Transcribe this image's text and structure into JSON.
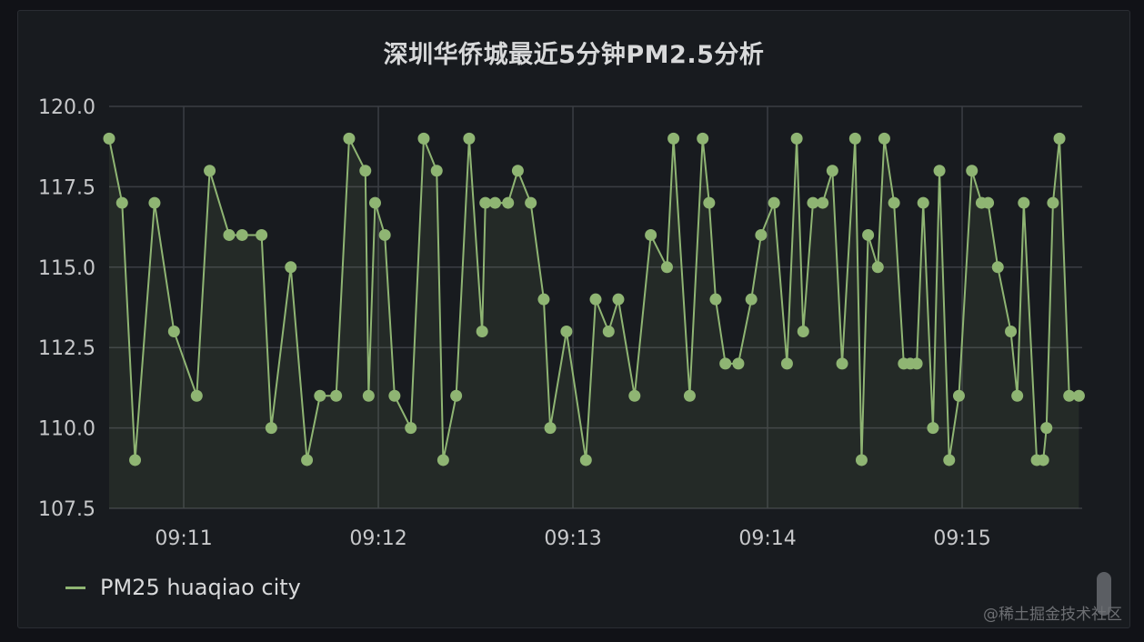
{
  "panel": {
    "title": "深圳华侨城最近5分钟PM2.5分析",
    "legend_label": "PM25 huaqiao city",
    "watermark": "@稀土掘金技术社区"
  },
  "colors": {
    "series": "#8fb573",
    "grid": "#3b3e44",
    "background": "#181b1f"
  },
  "chart_data": {
    "type": "area",
    "title": "深圳华侨城最近5分钟PM2.5分析",
    "xlabel": "",
    "ylabel": "",
    "ylim": [
      107.5,
      120.0
    ],
    "yticks": [
      120.0,
      117.5,
      115.0,
      112.5,
      110.0,
      107.5
    ],
    "ytick_labels": [
      "120.0",
      "117.5",
      "115.0",
      "112.5",
      "110.0",
      "107.5"
    ],
    "xlim": [
      "09:10:37",
      "09:15:37"
    ],
    "xticks": [
      "09:11",
      "09:12",
      "09:13",
      "09:14",
      "09:15"
    ],
    "legend": "bottom-left",
    "grid": true,
    "series": [
      {
        "name": "PM25 huaqiao city",
        "points": [
          [
            "09:10:37",
            119
          ],
          [
            "09:10:41",
            117
          ],
          [
            "09:10:45",
            109
          ],
          [
            "09:10:51",
            117
          ],
          [
            "09:10:57",
            113
          ],
          [
            "09:11:04",
            111
          ],
          [
            "09:11:08",
            118
          ],
          [
            "09:11:14",
            116
          ],
          [
            "09:11:18",
            116
          ],
          [
            "09:11:24",
            116
          ],
          [
            "09:11:27",
            110
          ],
          [
            "09:11:33",
            115
          ],
          [
            "09:11:38",
            109
          ],
          [
            "09:11:42",
            111
          ],
          [
            "09:11:47",
            111
          ],
          [
            "09:11:51",
            119
          ],
          [
            "09:11:56",
            118
          ],
          [
            "09:11:57",
            111
          ],
          [
            "09:11:59",
            117
          ],
          [
            "09:12:02",
            116
          ],
          [
            "09:12:05",
            111
          ],
          [
            "09:12:10",
            110
          ],
          [
            "09:12:14",
            119
          ],
          [
            "09:12:18",
            118
          ],
          [
            "09:12:20",
            109
          ],
          [
            "09:12:24",
            111
          ],
          [
            "09:12:28",
            119
          ],
          [
            "09:12:32",
            113
          ],
          [
            "09:12:33",
            117
          ],
          [
            "09:12:36",
            117
          ],
          [
            "09:12:40",
            117
          ],
          [
            "09:12:43",
            118
          ],
          [
            "09:12:47",
            117
          ],
          [
            "09:12:51",
            114
          ],
          [
            "09:12:53",
            110
          ],
          [
            "09:12:58",
            113
          ],
          [
            "09:13:04",
            109
          ],
          [
            "09:13:07",
            114
          ],
          [
            "09:13:11",
            113
          ],
          [
            "09:13:14",
            114
          ],
          [
            "09:13:19",
            111
          ],
          [
            "09:13:24",
            116
          ],
          [
            "09:13:29",
            115
          ],
          [
            "09:13:31",
            119
          ],
          [
            "09:13:36",
            111
          ],
          [
            "09:13:40",
            119
          ],
          [
            "09:13:42",
            117
          ],
          [
            "09:13:44",
            114
          ],
          [
            "09:13:47",
            112
          ],
          [
            "09:13:51",
            112
          ],
          [
            "09:13:55",
            114
          ],
          [
            "09:13:58",
            116
          ],
          [
            "09:14:02",
            117
          ],
          [
            "09:14:06",
            112
          ],
          [
            "09:14:09",
            119
          ],
          [
            "09:14:11",
            113
          ],
          [
            "09:14:14",
            117
          ],
          [
            "09:14:17",
            117
          ],
          [
            "09:14:20",
            118
          ],
          [
            "09:14:23",
            112
          ],
          [
            "09:14:27",
            119
          ],
          [
            "09:14:29",
            109
          ],
          [
            "09:14:31",
            116
          ],
          [
            "09:14:34",
            115
          ],
          [
            "09:14:36",
            119
          ],
          [
            "09:14:39",
            117
          ],
          [
            "09:14:42",
            112
          ],
          [
            "09:14:44",
            112
          ],
          [
            "09:14:46",
            112
          ],
          [
            "09:14:48",
            117
          ],
          [
            "09:14:51",
            110
          ],
          [
            "09:14:53",
            118
          ],
          [
            "09:14:56",
            109
          ],
          [
            "09:14:59",
            111
          ],
          [
            "09:15:03",
            118
          ],
          [
            "09:15:06",
            117
          ],
          [
            "09:15:08",
            117
          ],
          [
            "09:15:11",
            115
          ],
          [
            "09:15:15",
            113
          ],
          [
            "09:15:17",
            111
          ],
          [
            "09:15:19",
            117
          ],
          [
            "09:15:23",
            109
          ],
          [
            "09:15:25",
            109
          ],
          [
            "09:15:26",
            110
          ],
          [
            "09:15:28",
            117
          ],
          [
            "09:15:30",
            119
          ],
          [
            "09:15:33",
            111
          ],
          [
            "09:15:36",
            111
          ]
        ]
      }
    ]
  }
}
